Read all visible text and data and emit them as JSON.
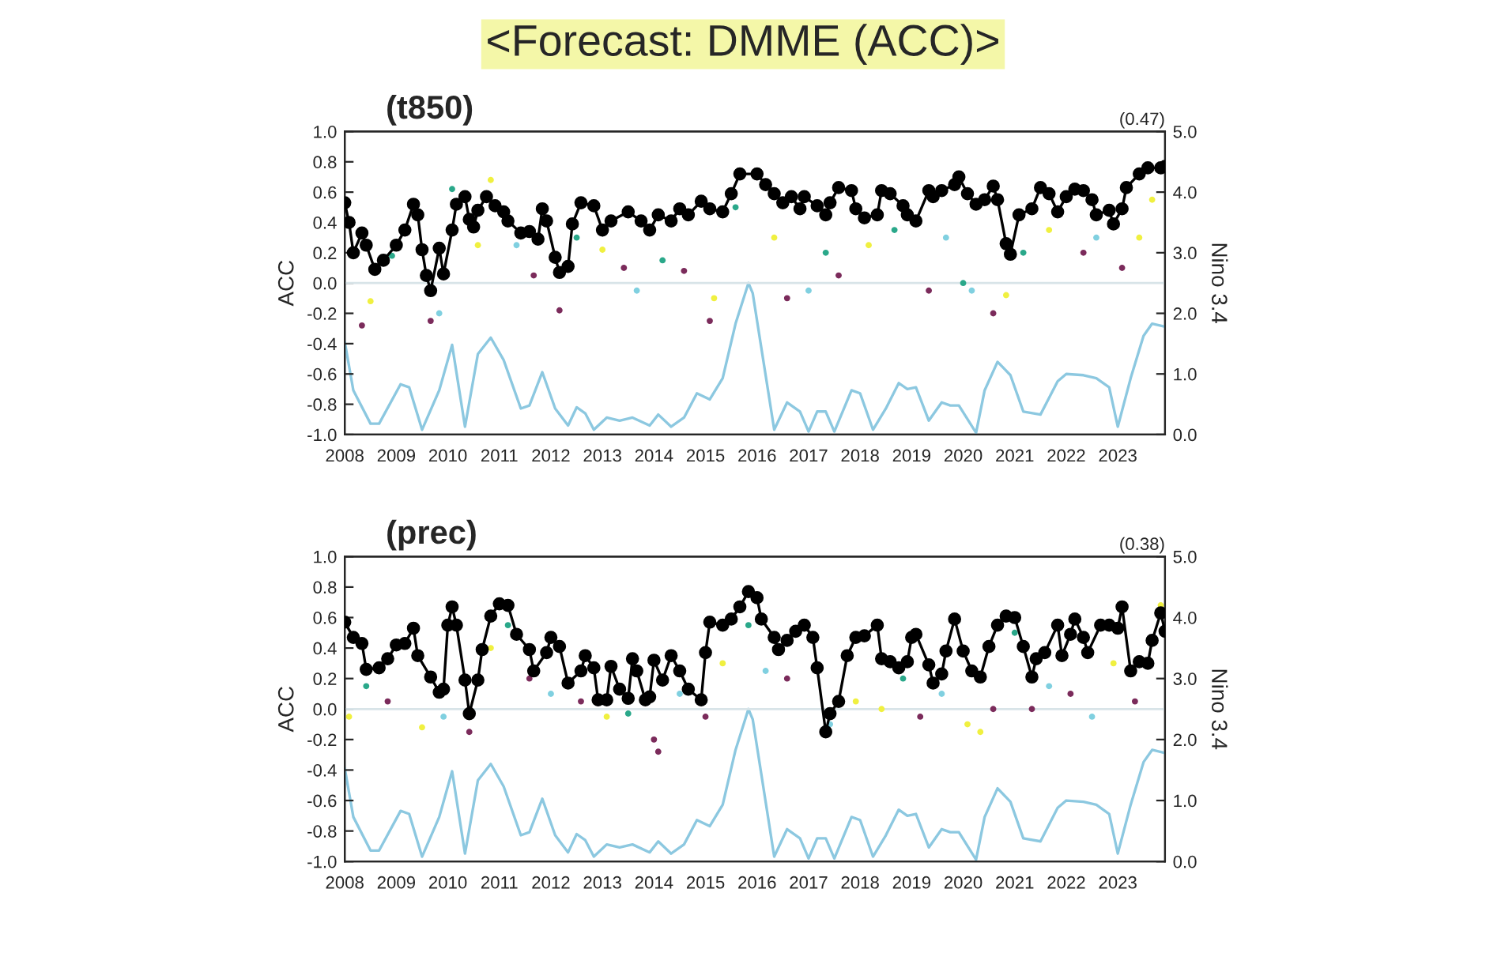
{
  "chart_data": [
    {
      "type": "line",
      "title": "<Forecast: DMME (ACC)>",
      "subtitle": "(t850)",
      "ylabel": "ACC",
      "y2label": "Nino 3.4",
      "annotations": [
        "(0.47)"
      ],
      "series": [
        {
          "type": "scatter",
          "marker": "circle",
          "x": [
            "2008-05",
            "2008-07",
            "2008-12",
            "2009-09",
            "2009-11",
            "2010-02",
            "2010-08",
            "2010-11",
            "2011-05",
            "2011-09",
            "2012-03",
            "2012-07",
            "2013-01",
            "2013-06",
            "2013-09",
            "2014-03",
            "2014-08",
            "2015-02",
            "2015-03",
            "2015-08",
            "2016-05",
            "2016-08",
            "2017-01",
            "2017-05",
            "2017-08",
            "2018-03",
            "2018-09",
            "2019-05",
            "2019-09",
            "2020-01",
            "2020-03",
            "2020-08",
            "2020-11",
            "2021-03",
            "2021-09",
            "2022-05",
            "2022-08",
            "2023-02",
            "2023-06",
            "2023-09"
          ],
          "values": [
            -0.28,
            -0.12,
            0.18,
            -0.25,
            -0.2,
            0.62,
            0.25,
            0.68,
            0.25,
            0.05,
            -0.18,
            0.3,
            0.22,
            0.1,
            -0.05,
            0.15,
            0.08,
            -0.25,
            -0.1,
            0.5,
            0.3,
            -0.1,
            -0.05,
            0.2,
            0.05,
            0.25,
            0.35,
            -0.05,
            0.3,
            0.0,
            -0.05,
            -0.2,
            -0.08,
            0.2,
            0.35,
            0.2,
            0.3,
            0.1,
            0.3,
            0.55
          ],
          "colors": [
            "#7b2b5b",
            "#f0f040",
            "#2aa88a",
            "#7b2b5b",
            "#80d0e0",
            "#2aa88a",
            "#f0f040",
            "#f0f040",
            "#80d0e0",
            "#7b2b5b",
            "#7b2b5b",
            "#2aa88a",
            "#f0f040",
            "#7b2b5b",
            "#80d0e0",
            "#2aa88a",
            "#7b2b5b",
            "#7b2b5b",
            "#f0f040",
            "#2aa88a",
            "#f0f040",
            "#7b2b5b",
            "#80d0e0",
            "#2aa88a",
            "#7b2b5b",
            "#f0f040",
            "#2aa88a",
            "#7b2b5b",
            "#80d0e0",
            "#2aa88a",
            "#80d0e0",
            "#7b2b5b",
            "#f0f040",
            "#2aa88a",
            "#f0f040",
            "#7b2b5b",
            "#80d0e0",
            "#7b2b5b",
            "#f0f040",
            "#f0f040"
          ]
        },
        {
          "color": "#000000",
          "marker": "circle",
          "line_style": "solid",
          "x": [
            "2008-01",
            "2008-02",
            "2008-03",
            "2008-05",
            "2008-06",
            "2008-08",
            "2008-10",
            "2009-01",
            "2009-03",
            "2009-05",
            "2009-06",
            "2009-07",
            "2009-08",
            "2009-09",
            "2009-11",
            "2009-12",
            "2010-02",
            "2010-03",
            "2010-05",
            "2010-06",
            "2010-07",
            "2010-08",
            "2010-10",
            "2010-12",
            "2011-02",
            "2011-03",
            "2011-06",
            "2011-08",
            "2011-10",
            "2011-11",
            "2011-12",
            "2012-02",
            "2012-03",
            "2012-05",
            "2012-06",
            "2012-08",
            "2012-11",
            "2013-01",
            "2013-03",
            "2013-07",
            "2013-10",
            "2013-12",
            "2014-02",
            "2014-05",
            "2014-07",
            "2014-09",
            "2014-12",
            "2015-02",
            "2015-05",
            "2015-07",
            "2015-09",
            "2016-01",
            "2016-03",
            "2016-05",
            "2016-07",
            "2016-09",
            "2016-11",
            "2016-12",
            "2017-03",
            "2017-05",
            "2017-06",
            "2017-08",
            "2017-11",
            "2017-12",
            "2018-02",
            "2018-05",
            "2018-06",
            "2018-08",
            "2018-11",
            "2018-12",
            "2019-02",
            "2019-05",
            "2019-06",
            "2019-08",
            "2019-11",
            "2019-12",
            "2020-02",
            "2020-04",
            "2020-06",
            "2020-08",
            "2020-09",
            "2020-11",
            "2020-12",
            "2021-02",
            "2021-05",
            "2021-07",
            "2021-09",
            "2021-11",
            "2022-01",
            "2022-03",
            "2022-05",
            "2022-07",
            "2022-08",
            "2022-11",
            "2022-12",
            "2023-02",
            "2023-03",
            "2023-06",
            "2023-08",
            "2023-11",
            "2023-12"
          ],
          "values": [
            0.53,
            0.4,
            0.2,
            0.33,
            0.25,
            0.09,
            0.15,
            0.25,
            0.35,
            0.52,
            0.45,
            0.22,
            0.05,
            -0.05,
            0.23,
            0.06,
            0.35,
            0.52,
            0.57,
            0.42,
            0.37,
            0.48,
            0.57,
            0.51,
            0.47,
            0.41,
            0.33,
            0.34,
            0.29,
            0.49,
            0.41,
            0.17,
            0.07,
            0.11,
            0.39,
            0.53,
            0.51,
            0.35,
            0.41,
            0.47,
            0.41,
            0.35,
            0.45,
            0.41,
            0.49,
            0.45,
            0.54,
            0.49,
            0.47,
            0.59,
            0.72,
            0.72,
            0.65,
            0.59,
            0.53,
            0.57,
            0.49,
            0.57,
            0.51,
            0.45,
            0.53,
            0.63,
            0.61,
            0.49,
            0.43,
            0.45,
            0.61,
            0.59,
            0.51,
            0.45,
            0.41,
            0.61,
            0.57,
            0.61,
            0.65,
            0.7,
            0.59,
            0.52,
            0.55,
            0.64,
            0.55,
            0.26,
            0.19,
            0.45,
            0.49,
            0.63,
            0.59,
            0.47,
            0.57,
            0.62,
            0.61,
            0.55,
            0.45,
            0.48,
            0.39,
            0.49,
            0.63,
            0.72,
            0.76,
            0.76,
            0.77
          ]
        },
        {
          "axis": "y2",
          "color": "#8cc8e0",
          "line_style": "solid",
          "x": [
            "2008-01",
            "2008-03",
            "2008-07",
            "2008-09",
            "2009-02",
            "2009-04",
            "2009-07",
            "2009-11",
            "2010-02",
            "2010-05",
            "2010-08",
            "2010-11",
            "2011-02",
            "2011-06",
            "2011-08",
            "2011-11",
            "2012-02",
            "2012-05",
            "2012-07",
            "2012-09",
            "2012-11",
            "2013-02",
            "2013-05",
            "2013-08",
            "2013-12",
            "2014-02",
            "2014-05",
            "2014-08",
            "2014-11",
            "2015-02",
            "2015-05",
            "2015-08",
            "2015-11",
            "2015-12",
            "2016-02",
            "2016-05",
            "2016-08",
            "2016-11",
            "2017-01",
            "2017-03",
            "2017-05",
            "2017-07",
            "2017-11",
            "2018-01",
            "2018-04",
            "2018-07",
            "2018-10",
            "2018-12",
            "2019-02",
            "2019-05",
            "2019-08",
            "2019-10",
            "2019-12",
            "2020-04",
            "2020-06",
            "2020-09",
            "2020-12",
            "2021-03",
            "2021-07",
            "2021-11",
            "2022-01",
            "2022-05",
            "2022-08",
            "2022-11",
            "2023-01",
            "2023-04",
            "2023-07",
            "2023-09",
            "2023-12"
          ],
          "values": [
            1.53,
            0.73,
            0.18,
            0.18,
            0.83,
            0.78,
            0.08,
            0.73,
            1.48,
            0.13,
            1.33,
            1.6,
            1.23,
            0.43,
            0.48,
            1.03,
            0.43,
            0.15,
            0.45,
            0.35,
            0.08,
            0.28,
            0.23,
            0.28,
            0.15,
            0.33,
            0.13,
            0.28,
            0.68,
            0.58,
            0.93,
            1.83,
            2.5,
            2.33,
            1.43,
            0.08,
            0.53,
            0.38,
            0.05,
            0.38,
            0.38,
            0.05,
            0.73,
            0.68,
            0.08,
            0.43,
            0.85,
            0.75,
            0.78,
            0.23,
            0.53,
            0.48,
            0.48,
            0.03,
            0.73,
            1.2,
            0.98,
            0.38,
            0.33,
            0.88,
            1.0,
            0.98,
            0.93,
            0.78,
            0.13,
            0.93,
            1.63,
            1.83,
            1.78
          ]
        }
      ],
      "xlim": [
        "2008-01",
        "2023-12"
      ],
      "xticks": [
        "2008",
        "2009",
        "2010",
        "2011",
        "2012",
        "2013",
        "2014",
        "2015",
        "2016",
        "2017",
        "2018",
        "2019",
        "2020",
        "2021",
        "2022",
        "2023"
      ],
      "ylim": [
        -1.0,
        1.0
      ],
      "yticks": [
        {
          "value": -1.0,
          "label": "-1.0"
        },
        {
          "value": -0.8,
          "label": "-0.8"
        },
        {
          "value": -0.6,
          "label": "-0.6"
        },
        {
          "value": -0.4,
          "label": "-0.4"
        },
        {
          "value": -0.2,
          "label": "-0.2"
        },
        {
          "value": 0.0,
          "label": "0.0"
        },
        {
          "value": 0.2,
          "label": "0.2"
        },
        {
          "value": 0.4,
          "label": "0.4"
        },
        {
          "value": 0.6,
          "label": "0.6"
        },
        {
          "value": 0.8,
          "label": "0.8"
        },
        {
          "value": 1.0,
          "label": "1.0"
        }
      ],
      "y2lim": [
        0.0,
        5.0
      ],
      "y2ticks": [
        {
          "value": 0,
          "label": "0.0"
        },
        {
          "value": 1,
          "label": "1.0"
        },
        {
          "value": 2,
          "label": "2.0"
        },
        {
          "value": 3,
          "label": "3.0"
        },
        {
          "value": 4,
          "label": "4.0"
        },
        {
          "value": 5,
          "label": "5.0"
        }
      ],
      "ref_lines": [
        {
          "axis": "y",
          "value": 0.0,
          "color": "#d8e4e8"
        }
      ],
      "grid": false
    },
    {
      "type": "line",
      "subtitle": "(prec)",
      "ylabel": "ACC",
      "y2label": "Nino 3.4",
      "annotations": [
        "(0.38)"
      ],
      "series": [
        {
          "type": "scatter",
          "marker": "circle",
          "x": [
            "2008-02",
            "2008-06",
            "2008-11",
            "2009-07",
            "2009-12",
            "2010-06",
            "2010-11",
            "2011-03",
            "2011-08",
            "2012-01",
            "2012-08",
            "2013-02",
            "2013-07",
            "2014-01",
            "2014-02",
            "2014-07",
            "2015-01",
            "2015-05",
            "2015-11",
            "2016-03",
            "2016-08",
            "2017-06",
            "2017-12",
            "2018-06",
            "2018-11",
            "2019-03",
            "2019-08",
            "2020-02",
            "2020-05",
            "2020-08",
            "2021-01",
            "2021-05",
            "2021-09",
            "2022-02",
            "2022-07",
            "2022-12",
            "2023-05",
            "2023-11"
          ],
          "values": [
            -0.05,
            0.15,
            0.05,
            -0.12,
            -0.05,
            -0.15,
            0.4,
            0.55,
            0.2,
            0.1,
            0.05,
            -0.05,
            -0.03,
            -0.2,
            -0.28,
            0.1,
            -0.05,
            0.3,
            0.55,
            0.25,
            0.2,
            -0.1,
            0.05,
            0.0,
            0.2,
            -0.05,
            0.1,
            -0.1,
            -0.15,
            0.0,
            0.5,
            0.0,
            0.15,
            0.1,
            -0.05,
            0.3,
            0.05,
            0.68
          ],
          "colors": [
            "#f0f040",
            "#2aa88a",
            "#7b2b5b",
            "#f0f040",
            "#80d0e0",
            "#7b2b5b",
            "#f0f040",
            "#2aa88a",
            "#7b2b5b",
            "#80d0e0",
            "#7b2b5b",
            "#f0f040",
            "#2aa88a",
            "#7b2b5b",
            "#7b2b5b",
            "#80d0e0",
            "#7b2b5b",
            "#f0f040",
            "#2aa88a",
            "#80d0e0",
            "#7b2b5b",
            "#80d0e0",
            "#f0f040",
            "#f0f040",
            "#2aa88a",
            "#7b2b5b",
            "#80d0e0",
            "#f0f040",
            "#f0f040",
            "#7b2b5b",
            "#2aa88a",
            "#7b2b5b",
            "#80d0e0",
            "#7b2b5b",
            "#80d0e0",
            "#f0f040",
            "#7b2b5b",
            "#f0f040"
          ]
        },
        {
          "color": "#000000",
          "marker": "circle",
          "line_style": "solid",
          "x": [
            "2008-01",
            "2008-03",
            "2008-05",
            "2008-06",
            "2008-09",
            "2008-11",
            "2009-01",
            "2009-03",
            "2009-05",
            "2009-06",
            "2009-09",
            "2009-11",
            "2009-12",
            "2010-01",
            "2010-02",
            "2010-03",
            "2010-05",
            "2010-06",
            "2010-08",
            "2010-09",
            "2010-11",
            "2011-01",
            "2011-03",
            "2011-05",
            "2011-08",
            "2011-09",
            "2011-12",
            "2012-01",
            "2012-03",
            "2012-05",
            "2012-08",
            "2012-09",
            "2012-11",
            "2012-12",
            "2013-02",
            "2013-03",
            "2013-05",
            "2013-07",
            "2013-08",
            "2013-09",
            "2013-11",
            "2013-12",
            "2014-01",
            "2014-03",
            "2014-05",
            "2014-07",
            "2014-09",
            "2014-12",
            "2015-01",
            "2015-02",
            "2015-05",
            "2015-07",
            "2015-09",
            "2015-11",
            "2016-01",
            "2016-02",
            "2016-05",
            "2016-06",
            "2016-08",
            "2016-10",
            "2016-12",
            "2017-02",
            "2017-03",
            "2017-05",
            "2017-06",
            "2017-08",
            "2017-10",
            "2017-12",
            "2018-02",
            "2018-05",
            "2018-06",
            "2018-08",
            "2018-10",
            "2018-12",
            "2019-01",
            "2019-02",
            "2019-05",
            "2019-06",
            "2019-08",
            "2019-09",
            "2019-11",
            "2020-01",
            "2020-03",
            "2020-05",
            "2020-07",
            "2020-09",
            "2020-11",
            "2021-01",
            "2021-03",
            "2021-05",
            "2021-06",
            "2021-08",
            "2021-11",
            "2021-12",
            "2022-02",
            "2022-03",
            "2022-05",
            "2022-06",
            "2022-09",
            "2022-11",
            "2023-01",
            "2023-02",
            "2023-04",
            "2023-06",
            "2023-08",
            "2023-09",
            "2023-11",
            "2023-12"
          ],
          "values": [
            0.57,
            0.47,
            0.43,
            0.26,
            0.27,
            0.33,
            0.42,
            0.43,
            0.53,
            0.35,
            0.21,
            0.11,
            0.13,
            0.55,
            0.67,
            0.55,
            0.19,
            -0.03,
            0.19,
            0.39,
            0.61,
            0.69,
            0.68,
            0.49,
            0.39,
            0.25,
            0.37,
            0.47,
            0.41,
            0.17,
            0.25,
            0.35,
            0.27,
            0.06,
            0.06,
            0.28,
            0.13,
            0.07,
            0.33,
            0.25,
            0.06,
            0.08,
            0.32,
            0.19,
            0.35,
            0.25,
            0.13,
            0.06,
            0.37,
            0.57,
            0.55,
            0.59,
            0.67,
            0.77,
            0.73,
            0.59,
            0.47,
            0.39,
            0.45,
            0.51,
            0.55,
            0.47,
            0.27,
            -0.15,
            -0.03,
            0.05,
            0.35,
            0.47,
            0.48,
            0.55,
            0.33,
            0.31,
            0.27,
            0.31,
            0.47,
            0.49,
            0.29,
            0.17,
            0.23,
            0.38,
            0.59,
            0.38,
            0.25,
            0.21,
            0.41,
            0.55,
            0.61,
            0.6,
            0.41,
            0.21,
            0.33,
            0.37,
            0.55,
            0.35,
            0.49,
            0.59,
            0.47,
            0.37,
            0.55,
            0.55,
            0.53,
            0.67,
            0.25,
            0.31,
            0.3,
            0.45,
            0.63,
            0.51
          ]
        },
        {
          "axis": "y2",
          "color": "#8cc8e0",
          "line_style": "solid",
          "x": [
            "2008-01",
            "2008-03",
            "2008-07",
            "2008-09",
            "2009-02",
            "2009-04",
            "2009-07",
            "2009-11",
            "2010-02",
            "2010-05",
            "2010-08",
            "2010-11",
            "2011-02",
            "2011-06",
            "2011-08",
            "2011-11",
            "2012-02",
            "2012-05",
            "2012-07",
            "2012-09",
            "2012-11",
            "2013-02",
            "2013-05",
            "2013-08",
            "2013-12",
            "2014-02",
            "2014-05",
            "2014-08",
            "2014-11",
            "2015-02",
            "2015-05",
            "2015-08",
            "2015-11",
            "2015-12",
            "2016-02",
            "2016-05",
            "2016-08",
            "2016-11",
            "2017-01",
            "2017-03",
            "2017-05",
            "2017-07",
            "2017-11",
            "2018-01",
            "2018-04",
            "2018-07",
            "2018-10",
            "2018-12",
            "2019-02",
            "2019-05",
            "2019-08",
            "2019-10",
            "2019-12",
            "2020-04",
            "2020-06",
            "2020-09",
            "2020-12",
            "2021-03",
            "2021-07",
            "2021-11",
            "2022-01",
            "2022-05",
            "2022-08",
            "2022-11",
            "2023-01",
            "2023-04",
            "2023-07",
            "2023-09",
            "2023-12"
          ],
          "values": [
            1.53,
            0.73,
            0.18,
            0.18,
            0.83,
            0.78,
            0.08,
            0.73,
            1.48,
            0.13,
            1.33,
            1.6,
            1.23,
            0.43,
            0.48,
            1.03,
            0.43,
            0.15,
            0.45,
            0.35,
            0.08,
            0.28,
            0.23,
            0.28,
            0.15,
            0.33,
            0.13,
            0.28,
            0.68,
            0.58,
            0.93,
            1.83,
            2.5,
            2.33,
            1.43,
            0.08,
            0.53,
            0.38,
            0.05,
            0.38,
            0.38,
            0.05,
            0.73,
            0.68,
            0.08,
            0.43,
            0.85,
            0.75,
            0.78,
            0.23,
            0.53,
            0.48,
            0.48,
            0.03,
            0.73,
            1.2,
            0.98,
            0.38,
            0.33,
            0.88,
            1.0,
            0.98,
            0.93,
            0.78,
            0.13,
            0.93,
            1.63,
            1.83,
            1.78
          ]
        }
      ],
      "xlim": [
        "2008-01",
        "2023-12"
      ],
      "xticks": [
        "2008",
        "2009",
        "2010",
        "2011",
        "2012",
        "2013",
        "2014",
        "2015",
        "2016",
        "2017",
        "2018",
        "2019",
        "2020",
        "2021",
        "2022",
        "2023"
      ],
      "ylim": [
        -1.0,
        1.0
      ],
      "yticks": [
        {
          "value": -1.0,
          "label": "-1.0"
        },
        {
          "value": -0.8,
          "label": "-0.8"
        },
        {
          "value": -0.6,
          "label": "-0.6"
        },
        {
          "value": -0.4,
          "label": "-0.4"
        },
        {
          "value": -0.2,
          "label": "-0.2"
        },
        {
          "value": 0.0,
          "label": "0.0"
        },
        {
          "value": 0.2,
          "label": "0.2"
        },
        {
          "value": 0.4,
          "label": "0.4"
        },
        {
          "value": 0.6,
          "label": "0.6"
        },
        {
          "value": 0.8,
          "label": "0.8"
        },
        {
          "value": 1.0,
          "label": "1.0"
        }
      ],
      "y2lim": [
        0.0,
        5.0
      ],
      "y2ticks": [
        {
          "value": 0,
          "label": "0.0"
        },
        {
          "value": 1,
          "label": "1.0"
        },
        {
          "value": 2,
          "label": "2.0"
        },
        {
          "value": 3,
          "label": "3.0"
        },
        {
          "value": 4,
          "label": "4.0"
        },
        {
          "value": 5,
          "label": "5.0"
        }
      ],
      "ref_lines": [
        {
          "axis": "y",
          "value": 0.0,
          "color": "#d8e4e8"
        }
      ],
      "grid": false
    }
  ]
}
